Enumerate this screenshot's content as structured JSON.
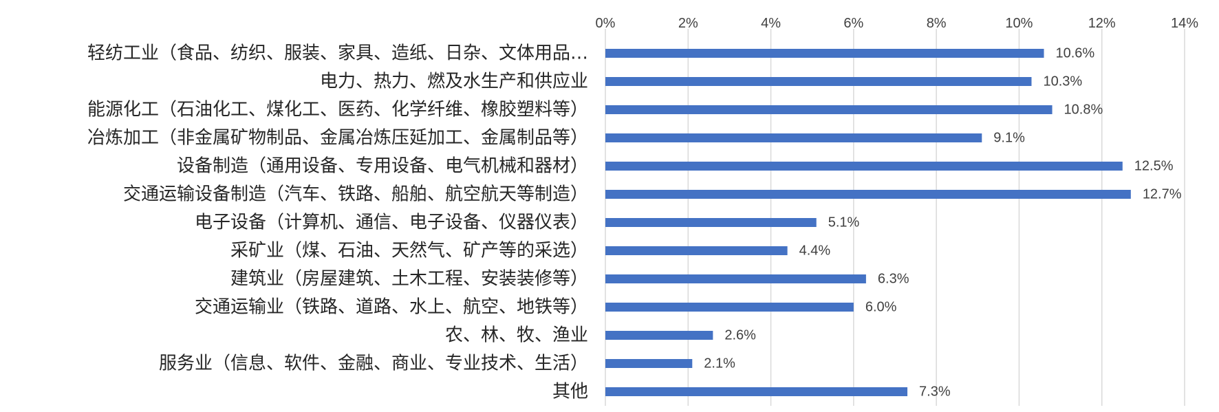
{
  "chart_data": {
    "type": "bar",
    "orientation": "horizontal",
    "categories": [
      "轻纺工业（食品、纺织、服装、家具、造纸、日杂、文体用品…",
      "电力、热力、燃及水生产和供应业",
      "能源化工（石油化工、煤化工、医药、化学纤维、橡胶塑料等）",
      "冶炼加工（非金属矿物制品、金属冶炼压延加工、金属制品等）",
      "设备制造（通用设备、专用设备、电气机械和器材）",
      "交通运输设备制造（汽车、铁路、船舶、航空航天等制造）",
      "电子设备（计算机、通信、电子设备、仪器仪表）",
      "采矿业（煤、石油、天然气、矿产等的采选）",
      "建筑业（房屋建筑、土木工程、安装装修等）",
      "交通运输业（铁路、道路、水上、航空、地铁等）",
      "农、林、牧、渔业",
      "服务业（信息、软件、金融、商业、专业技术、生活）",
      "其他"
    ],
    "values": [
      10.6,
      10.3,
      10.8,
      9.1,
      12.5,
      12.7,
      5.1,
      4.4,
      6.3,
      6.0,
      2.6,
      2.1,
      7.3
    ],
    "data_labels": [
      "10.6%",
      "10.3%",
      "10.8%",
      "9.1%",
      "12.5%",
      "12.7%",
      "5.1%",
      "4.4%",
      "6.3%",
      "6.0%",
      "2.6%",
      "2.1%",
      "7.3%"
    ],
    "xlim": [
      0,
      14
    ],
    "xticks": [
      "0%",
      "2%",
      "4%",
      "6%",
      "8%",
      "10%",
      "12%",
      "14%"
    ],
    "axis_position": "top",
    "grid": true,
    "title": "",
    "xlabel": "",
    "ylabel": "",
    "bar_color": "#4472c4"
  }
}
